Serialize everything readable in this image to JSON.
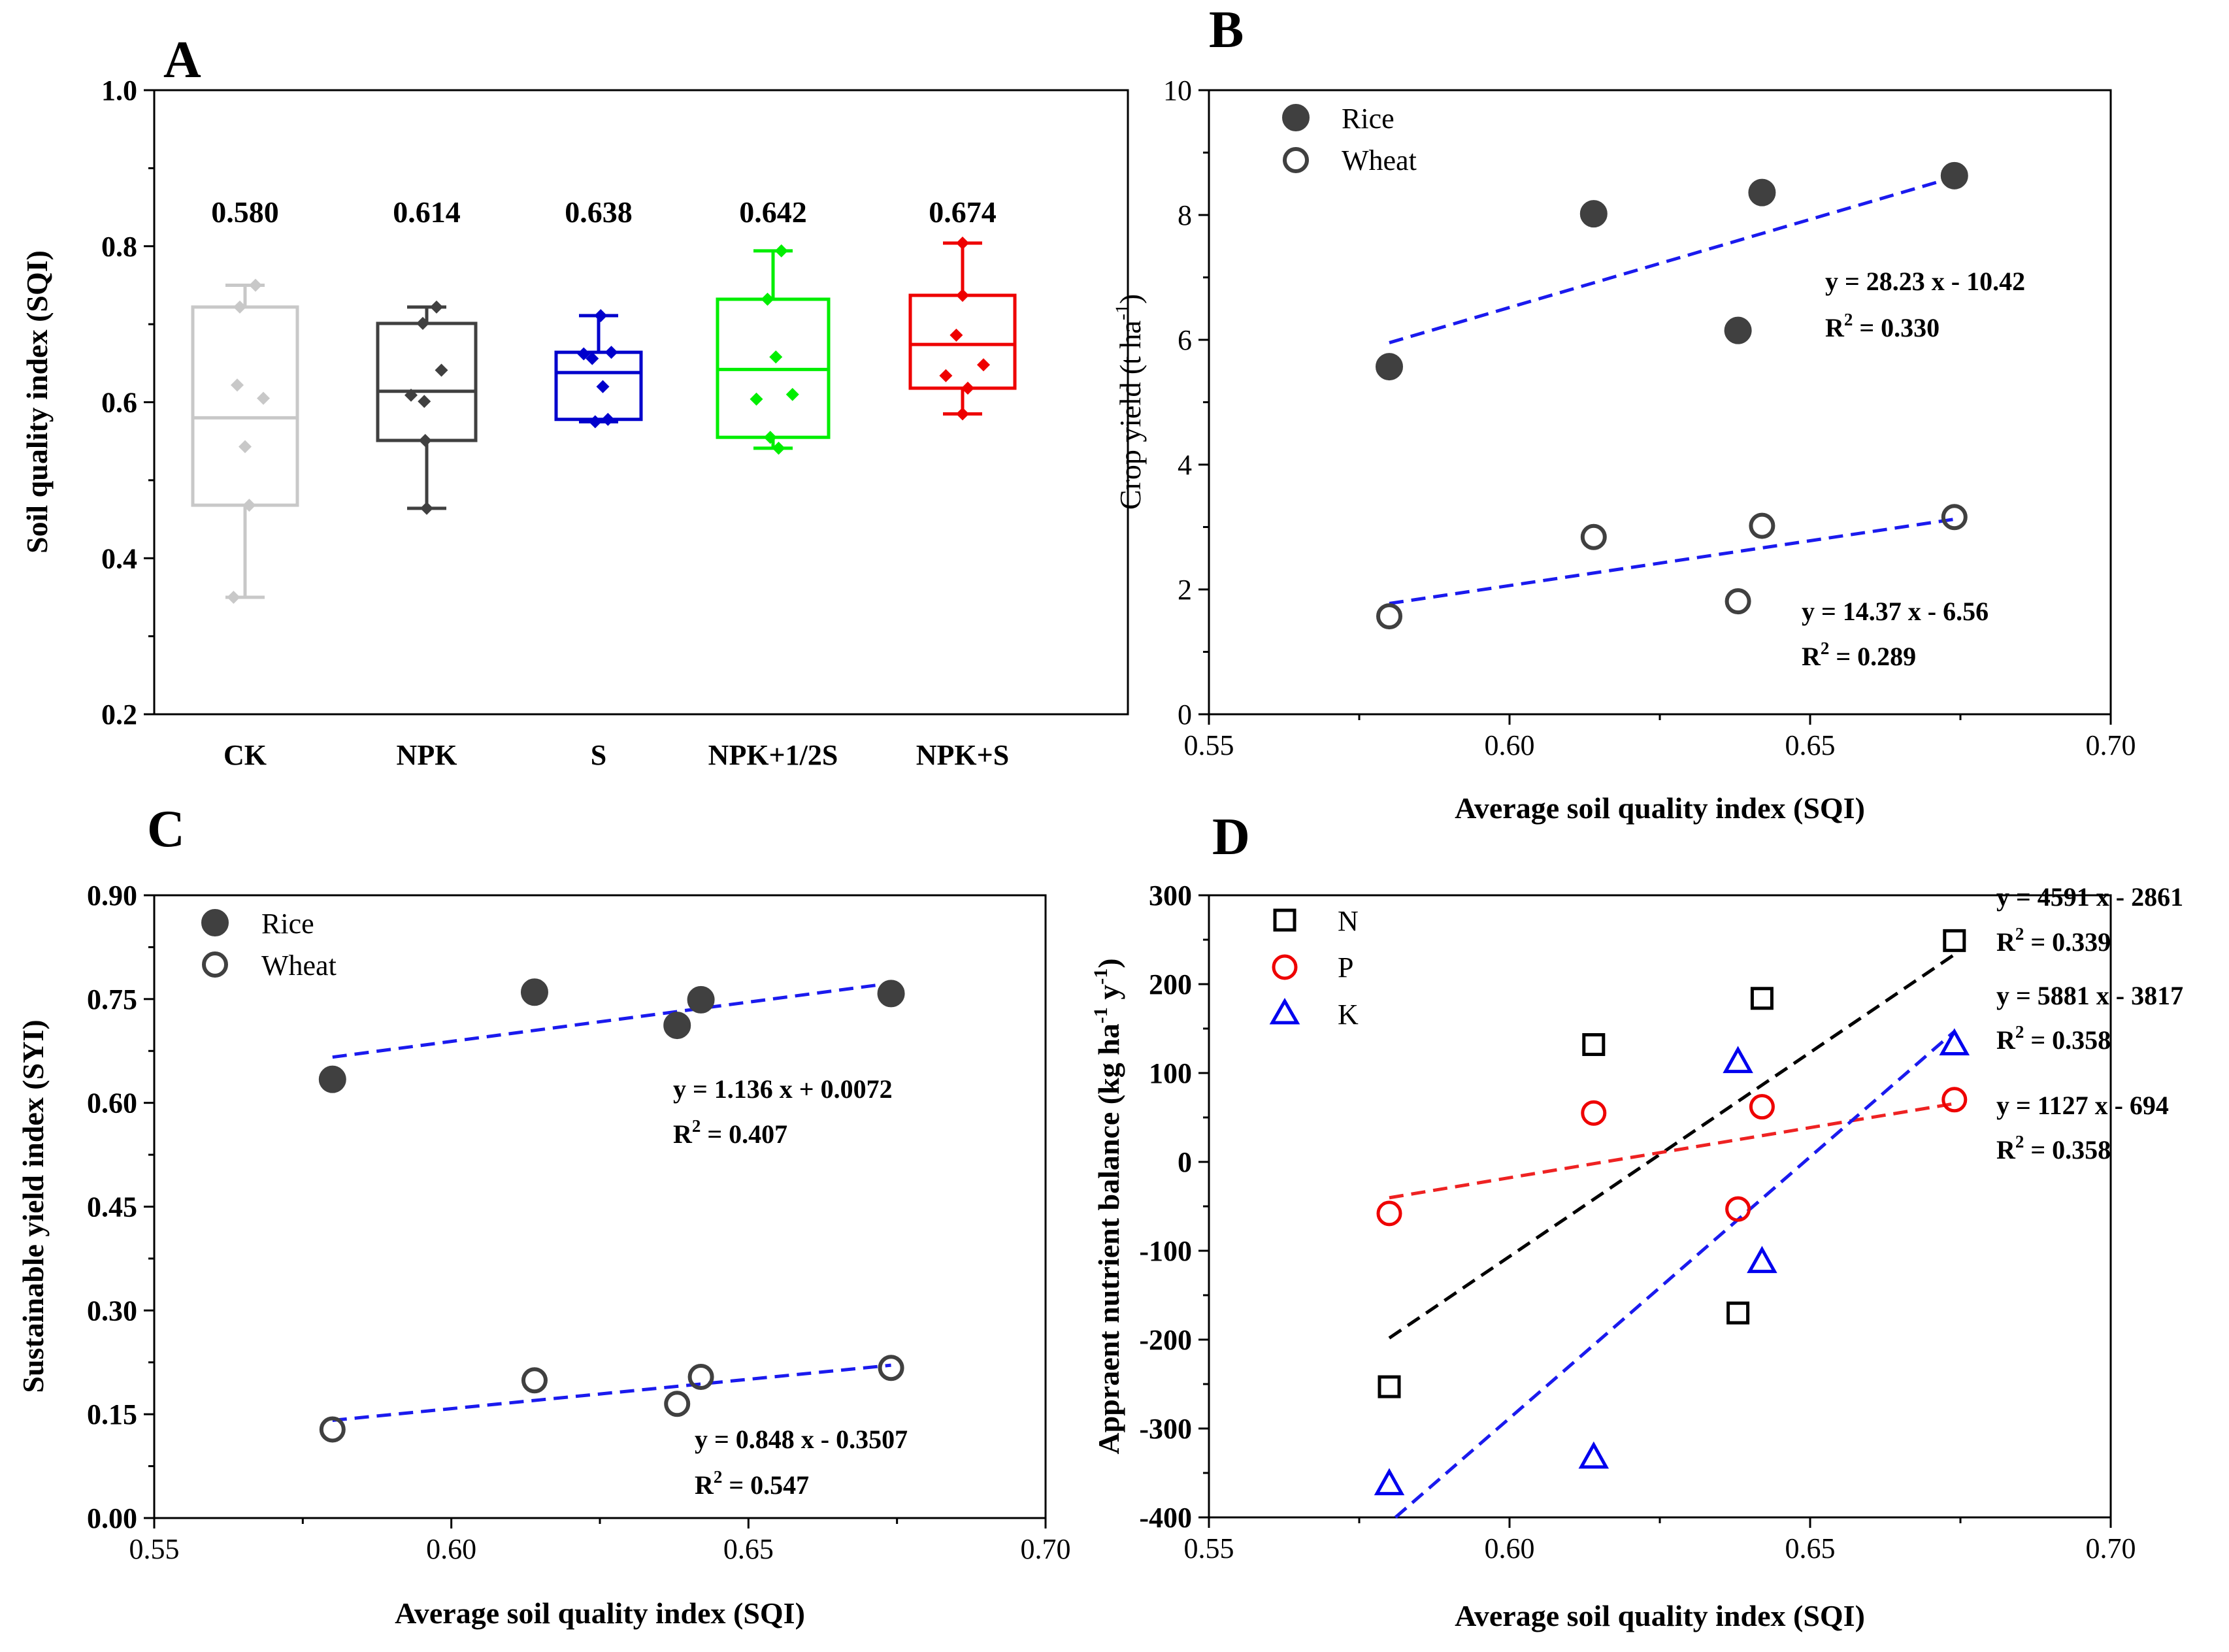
{
  "chart_data": [
    {
      "id": "A",
      "type": "box",
      "panel_letter": "A",
      "ylabel": "Soil quality index (SQI)",
      "ylim": [
        0.2,
        1.0
      ],
      "yticks": [
        0.2,
        0.4,
        0.6,
        0.8,
        1.0
      ],
      "ytick_labels": [
        "0.2",
        "0.4",
        "0.6",
        "0.8",
        "1.0"
      ],
      "categories": [
        "CK",
        "NPK",
        "S",
        "NPK+1/2S",
        "NPK+S"
      ],
      "colors": [
        "#c8c8c8",
        "#404040",
        "#0000cc",
        "#00ee00",
        "#ee0000"
      ],
      "means": [
        0.58,
        0.614,
        0.638,
        0.642,
        0.674
      ],
      "mean_labels": [
        "0.580",
        "0.614",
        "0.638",
        "0.642",
        "0.674"
      ],
      "boxes": [
        {
          "whisker_low": 0.35,
          "q1": 0.468,
          "median": 0.58,
          "q3": 0.722,
          "whisker_high": 0.75
        },
        {
          "whisker_low": 0.464,
          "q1": 0.551,
          "median": 0.614,
          "q3": 0.701,
          "whisker_high": 0.722
        },
        {
          "whisker_low": 0.575,
          "q1": 0.578,
          "median": 0.638,
          "q3": 0.664,
          "whisker_high": 0.711
        },
        {
          "whisker_low": 0.541,
          "q1": 0.555,
          "median": 0.642,
          "q3": 0.732,
          "whisker_high": 0.794
        },
        {
          "whisker_low": 0.585,
          "q1": 0.618,
          "median": 0.674,
          "q3": 0.737,
          "whisker_high": 0.804
        }
      ],
      "points": [
        [
          [
            0.35,
            -0.22
          ],
          [
            0.468,
            0.08
          ],
          [
            0.543,
            0.0
          ],
          [
            0.605,
            0.35
          ],
          [
            0.622,
            -0.15
          ],
          [
            0.722,
            -0.1
          ],
          [
            0.75,
            0.2
          ]
        ],
        [
          [
            0.464,
            0.0
          ],
          [
            0.551,
            -0.03
          ],
          [
            0.601,
            -0.05
          ],
          [
            0.609,
            -0.32
          ],
          [
            0.641,
            0.3
          ],
          [
            0.701,
            -0.08
          ],
          [
            0.722,
            0.2
          ]
        ],
        [
          [
            0.575,
            -0.08
          ],
          [
            0.578,
            0.22
          ],
          [
            0.62,
            0.1
          ],
          [
            0.656,
            -0.15
          ],
          [
            0.662,
            -0.35
          ],
          [
            0.664,
            0.3
          ],
          [
            0.711,
            0.05
          ]
        ],
        [
          [
            0.541,
            0.1
          ],
          [
            0.555,
            -0.05
          ],
          [
            0.604,
            -0.3
          ],
          [
            0.61,
            0.35
          ],
          [
            0.658,
            0.05
          ],
          [
            0.732,
            -0.1
          ],
          [
            0.794,
            0.15
          ]
        ],
        [
          [
            0.585,
            0.0
          ],
          [
            0.618,
            0.1
          ],
          [
            0.634,
            -0.32
          ],
          [
            0.648,
            0.4
          ],
          [
            0.686,
            -0.12
          ],
          [
            0.737,
            0.0
          ],
          [
            0.804,
            0.0
          ]
        ]
      ]
    },
    {
      "id": "B",
      "type": "scatter",
      "panel_letter": "B",
      "xlabel": "Average soil quality index (SQI)",
      "ylabel_main": "Crop yield (t ha",
      "ylabel_sup": "-1",
      "ylabel_tail": ")",
      "xlim": [
        0.55,
        0.7
      ],
      "ylim": [
        0,
        10
      ],
      "xticks": [
        0.55,
        0.6,
        0.65,
        0.7
      ],
      "xtick_labels": [
        "0.55",
        "0.60",
        "0.65",
        "0.70"
      ],
      "yticks": [
        0,
        2,
        4,
        6,
        8,
        10
      ],
      "ytick_labels": [
        "0",
        "2",
        "4",
        "6",
        "8",
        "10"
      ],
      "series": [
        {
          "name": "Rice",
          "marker": "filled-circle",
          "color": "#404040",
          "x": [
            0.58,
            0.614,
            0.638,
            0.642,
            0.674
          ],
          "y": [
            5.57,
            8.02,
            6.15,
            8.36,
            8.63
          ],
          "fit": {
            "slope": 28.23,
            "intercept": -10.42
          },
          "eq_label": "y = 28.23 x - 10.42",
          "r2_value": " = 0.330"
        },
        {
          "name": "Wheat",
          "marker": "open-circle",
          "color": "#404040",
          "x": [
            0.58,
            0.614,
            0.638,
            0.642,
            0.674
          ],
          "y": [
            1.57,
            2.84,
            1.81,
            3.02,
            3.16
          ],
          "fit": {
            "slope": 14.37,
            "intercept": -6.56
          },
          "eq_label": "y = 14.37 x - 6.56",
          "r2_value": " = 0.289"
        }
      ]
    },
    {
      "id": "C",
      "type": "scatter",
      "panel_letter": "C",
      "xlabel": "Average soil quality index (SQI)",
      "ylabel": "Sustainable yield index (SYI)",
      "xlim": [
        0.55,
        0.7
      ],
      "ylim": [
        0,
        0.9
      ],
      "xticks": [
        0.55,
        0.6,
        0.65,
        0.7
      ],
      "xtick_labels": [
        "0.55",
        "0.60",
        "0.65",
        "0.70"
      ],
      "yticks": [
        0,
        0.15,
        0.3,
        0.45,
        0.6,
        0.75,
        0.9
      ],
      "ytick_labels": [
        "0.00",
        "0.15",
        "0.30",
        "0.45",
        "0.60",
        "0.75",
        "0.90"
      ],
      "series": [
        {
          "name": "Rice",
          "marker": "filled-circle",
          "color": "#404040",
          "x": [
            0.58,
            0.614,
            0.638,
            0.642,
            0.674
          ],
          "y": [
            0.634,
            0.76,
            0.712,
            0.749,
            0.758
          ],
          "fit": {
            "slope": 1.136,
            "intercept": 0.0072
          },
          "eq_label": "y = 1.136 x + 0.0072",
          "r2_value": " = 0.407"
        },
        {
          "name": "Wheat",
          "marker": "open-circle",
          "color": "#404040",
          "x": [
            0.58,
            0.614,
            0.638,
            0.642,
            0.674
          ],
          "y": [
            0.128,
            0.199,
            0.165,
            0.204,
            0.217
          ],
          "fit": {
            "slope": 0.848,
            "intercept": -0.3507
          },
          "eq_label": "y = 0.848 x - 0.3507",
          "r2_value": " = 0.547"
        }
      ]
    },
    {
      "id": "D",
      "type": "scatter",
      "panel_letter": "D",
      "xlabel": "Average soil quality index (SQI)",
      "ylabel_main": "Appraent nutrient balance (kg ha",
      "ylabel_sup1": "-1",
      "ylabel_mid": " y",
      "ylabel_sup2": "-1",
      "ylabel_tail": ")",
      "xlim": [
        0.55,
        0.7
      ],
      "ylim": [
        -400,
        300
      ],
      "xticks": [
        0.55,
        0.6,
        0.65,
        0.7
      ],
      "xtick_labels": [
        "0.55",
        "0.60",
        "0.65",
        "0.70"
      ],
      "yticks": [
        -400,
        -300,
        -200,
        -100,
        0,
        100,
        200,
        300
      ],
      "ytick_labels": [
        "-400",
        "-300",
        "-200",
        "-100",
        "0",
        "100",
        "200",
        "300"
      ],
      "series": [
        {
          "name": "N",
          "marker": "open-square",
          "color": "#000000",
          "x": [
            0.58,
            0.614,
            0.638,
            0.642,
            0.674
          ],
          "y": [
            -253,
            132,
            -170,
            184,
            249
          ],
          "fit": {
            "slope": 4591,
            "intercept": -2861
          },
          "eq_label": "y = 4591 x - 2861",
          "r2_value": " = 0.339"
        },
        {
          "name": "P",
          "marker": "open-circle",
          "color": "#ee0000",
          "x": [
            0.58,
            0.614,
            0.638,
            0.642,
            0.674
          ],
          "y": [
            -58,
            55,
            -53,
            62,
            70
          ],
          "fit": {
            "slope": 1127,
            "intercept": -694
          },
          "eq_label": "y = 1127 x - 694",
          "r2_value": " = 0.358"
        },
        {
          "name": "K",
          "marker": "open-triangle",
          "color": "#0000ee",
          "x": [
            0.58,
            0.614,
            0.638,
            0.642,
            0.674
          ],
          "y": [
            -363,
            -333,
            112,
            -113,
            132
          ],
          "fit": {
            "slope": 5881,
            "intercept": -3817
          },
          "eq_label": "y = 5881 x - 3817",
          "r2_value": " = 0.358"
        }
      ]
    }
  ],
  "r2_prefix": "R",
  "r2_sup": "2",
  "colors": {
    "dashed_fit_blue": "#1a1aee",
    "dashed_fit_black": "#000000",
    "dashed_fit_red": "#ee2222"
  }
}
